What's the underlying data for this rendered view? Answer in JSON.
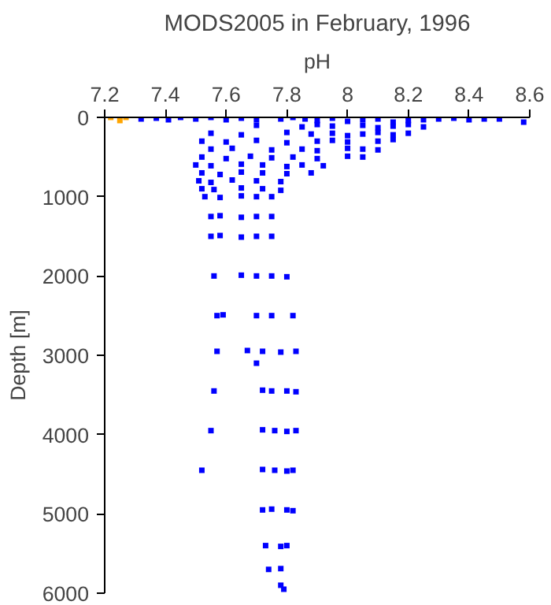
{
  "chart_data": {
    "type": "scatter",
    "title": "MODS2005 in February, 1996",
    "xlabel": "pH",
    "ylabel": "Depth [m]",
    "xlim": [
      7.2,
      8.6
    ],
    "xticks": [
      7.2,
      7.4,
      7.6,
      7.8,
      8,
      8.2,
      8.4,
      8.6
    ],
    "ylim": [
      6000,
      0
    ],
    "yticks": [
      0,
      1000,
      2000,
      3000,
      4000,
      5000,
      6000
    ],
    "grid": false,
    "marker": "square",
    "series": [
      {
        "color": "#ffa500",
        "x": [
          7.22,
          7.25,
          7.27
        ],
        "values": [
          0,
          40,
          0
        ]
      },
      {
        "color": "#0000ff",
        "x": [
          7.32,
          7.37,
          7.41,
          7.45,
          7.5,
          7.55,
          7.6,
          7.65,
          7.7,
          7.78,
          7.82,
          7.86,
          7.9,
          7.95,
          8.0,
          8.05,
          8.1,
          8.15,
          8.2,
          8.25,
          8.3,
          8.35,
          8.4,
          8.45,
          8.5,
          8.58,
          7.7,
          7.85,
          7.9,
          7.95,
          8.05,
          8.1,
          8.15,
          8.2,
          8.25,
          7.55,
          7.65,
          7.8,
          7.88,
          7.95,
          8.0,
          8.05,
          8.1,
          8.15,
          8.2,
          7.52,
          7.6,
          7.7,
          7.8,
          7.9,
          7.95,
          8.0,
          8.1,
          8.15,
          7.55,
          7.62,
          7.75,
          7.85,
          7.9,
          8.0,
          8.05,
          8.1,
          7.52,
          7.6,
          7.68,
          7.75,
          7.82,
          7.9,
          8.0,
          8.05,
          7.5,
          7.55,
          7.65,
          7.72,
          7.8,
          7.85,
          7.92,
          7.52,
          7.58,
          7.65,
          7.72,
          7.8,
          7.88,
          7.51,
          7.55,
          7.62,
          7.7,
          7.78,
          7.52,
          7.56,
          7.65,
          7.72,
          7.78,
          7.53,
          7.58,
          7.65,
          7.7,
          7.75,
          7.55,
          7.58,
          7.65,
          7.7,
          7.75,
          7.55,
          7.58,
          7.65,
          7.7,
          7.75,
          7.56,
          7.65,
          7.7,
          7.75,
          7.8,
          7.57,
          7.59,
          7.7,
          7.75,
          7.82,
          7.57,
          7.67,
          7.72,
          7.78,
          7.83,
          7.7,
          7.56,
          7.72,
          7.75,
          7.8,
          7.83,
          7.55,
          7.72,
          7.76,
          7.8,
          7.83,
          7.52,
          7.72,
          7.76,
          7.8,
          7.82,
          7.72,
          7.75,
          7.8,
          7.82,
          7.73,
          7.78,
          7.8,
          7.74,
          7.78,
          7.78,
          7.79
        ],
        "values": [
          20,
          10,
          30,
          0,
          20,
          0,
          30,
          10,
          30,
          20,
          0,
          20,
          40,
          10,
          50,
          30,
          20,
          60,
          40,
          30,
          20,
          10,
          30,
          20,
          20,
          60,
          100,
          120,
          90,
          110,
          100,
          130,
          110,
          90,
          120,
          200,
          220,
          190,
          210,
          200,
          230,
          210,
          190,
          220,
          200,
          300,
          310,
          290,
          320,
          300,
          290,
          310,
          300,
          280,
          400,
          390,
          410,
          400,
          420,
          390,
          400,
          410,
          500,
          520,
          490,
          510,
          500,
          520,
          490,
          500,
          600,
          610,
          590,
          600,
          620,
          600,
          610,
          700,
          720,
          690,
          700,
          710,
          700,
          800,
          820,
          790,
          800,
          810,
          900,
          910,
          890,
          900,
          920,
          1000,
          1010,
          990,
          1000,
          1000,
          1250,
          1240,
          1260,
          1250,
          1250,
          1500,
          1490,
          1510,
          1500,
          1500,
          2000,
          1990,
          2000,
          2000,
          2010,
          2500,
          2490,
          2500,
          2500,
          2500,
          2950,
          2940,
          2950,
          2960,
          2950,
          3100,
          3450,
          3440,
          3450,
          3450,
          3460,
          3950,
          3940,
          3950,
          3960,
          3950,
          4450,
          4440,
          4450,
          4460,
          4450,
          4950,
          4940,
          4950,
          4960,
          5400,
          5410,
          5400,
          5700,
          5690,
          5900,
          5950
        ]
      }
    ]
  }
}
